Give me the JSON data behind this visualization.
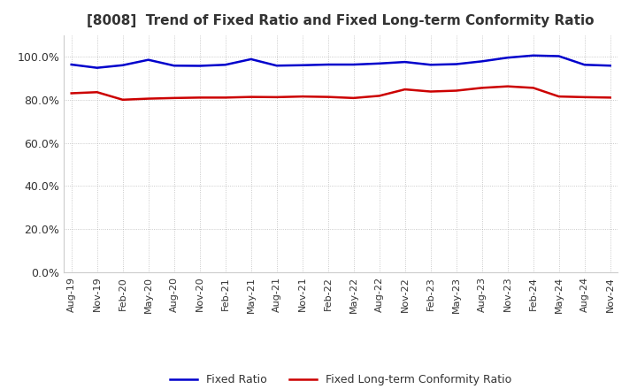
{
  "title": "[8008]  Trend of Fixed Ratio and Fixed Long-term Conformity Ratio",
  "title_fontsize": 11,
  "ylim": [
    0.0,
    1.1
  ],
  "yticks": [
    0.0,
    0.2,
    0.4,
    0.6,
    0.8,
    1.0
  ],
  "ytick_labels": [
    "0.0%",
    "20.0%",
    "40.0%",
    "60.0%",
    "80.0%",
    "100.0%"
  ],
  "x_labels": [
    "Aug-19",
    "Nov-19",
    "Feb-20",
    "May-20",
    "Aug-20",
    "Nov-20",
    "Feb-21",
    "May-21",
    "Aug-21",
    "Nov-21",
    "Feb-22",
    "May-22",
    "Aug-22",
    "Nov-22",
    "Feb-23",
    "May-23",
    "Aug-23",
    "Nov-23",
    "Feb-24",
    "May-24",
    "Aug-24",
    "Nov-24"
  ],
  "fixed_ratio": [
    0.963,
    0.948,
    0.96,
    0.985,
    0.958,
    0.957,
    0.962,
    0.988,
    0.958,
    0.96,
    0.963,
    0.963,
    0.968,
    0.975,
    0.962,
    0.965,
    0.978,
    0.995,
    1.005,
    1.002,
    0.962,
    0.958
  ],
  "fixed_lt_ratio": [
    0.83,
    0.835,
    0.8,
    0.805,
    0.808,
    0.81,
    0.81,
    0.813,
    0.812,
    0.815,
    0.813,
    0.808,
    0.818,
    0.848,
    0.838,
    0.842,
    0.855,
    0.862,
    0.855,
    0.815,
    0.812,
    0.81
  ],
  "fixed_ratio_color": "#0000cc",
  "fixed_lt_ratio_color": "#cc0000",
  "line_width": 1.8,
  "legend_labels": [
    "Fixed Ratio",
    "Fixed Long-term Conformity Ratio"
  ],
  "bg_color": "#ffffff",
  "grid_color": "#aaaaaa",
  "title_color": "#333333"
}
